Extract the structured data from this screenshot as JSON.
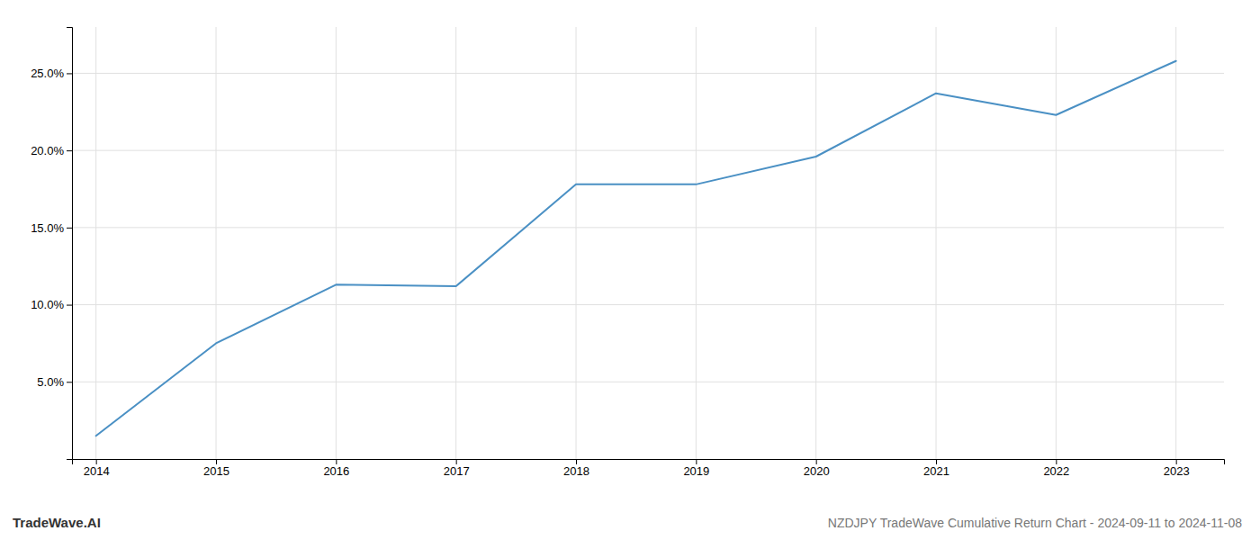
{
  "chart_data": {
    "type": "line",
    "title": "NZDJPY TradeWave Cumulative Return Chart - 2024-09-11 to 2024-11-08",
    "annotations": [
      "TradeWave.AI"
    ],
    "x": [
      2014,
      2015,
      2016,
      2017,
      2018,
      2019,
      2020,
      2021,
      2022,
      2023
    ],
    "values": [
      1.5,
      7.5,
      11.3,
      11.2,
      17.8,
      17.8,
      19.6,
      23.7,
      22.3,
      25.8
    ],
    "color": "#4a90c4",
    "xlim": [
      2013.8,
      2023.4
    ],
    "xticks": [
      2014,
      2015,
      2016,
      2017,
      2018,
      2019,
      2020,
      2021,
      2022,
      2023
    ],
    "ylim": [
      0,
      28
    ],
    "yticks": [
      {
        "value": 5.0,
        "label": "5.0%"
      },
      {
        "value": 10.0,
        "label": "10.0%"
      },
      {
        "value": 15.0,
        "label": "15.0%"
      },
      {
        "value": 20.0,
        "label": "20.0%"
      },
      {
        "value": 25.0,
        "label": "25.0%"
      }
    ],
    "grid": true
  }
}
